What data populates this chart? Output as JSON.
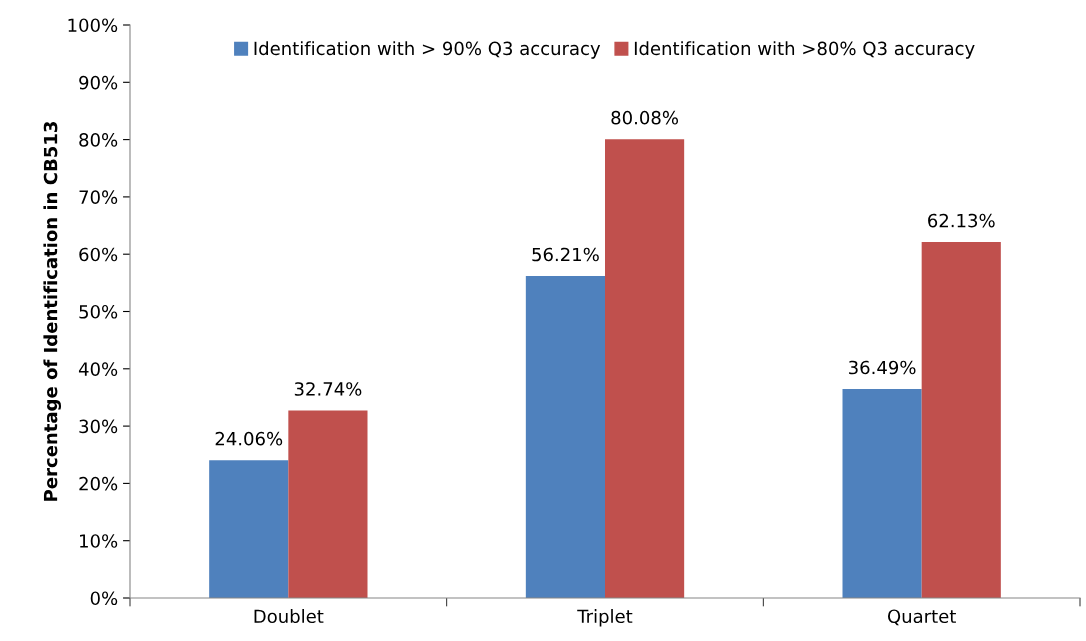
{
  "chart_data": {
    "type": "bar",
    "ylabel": "Percentage of Identification in CB513",
    "categories": [
      "Doublet",
      "Triplet",
      "Quartet"
    ],
    "series": [
      {
        "name": "Identification with > 90% Q3 accuracy",
        "color": "#4f81bd",
        "values": [
          24.06,
          56.21,
          36.49
        ],
        "value_labels": [
          "24.06%",
          "56.21%",
          "36.49%"
        ]
      },
      {
        "name": "Identification with >80% Q3 accuracy",
        "color": "#c0504d",
        "values": [
          32.74,
          80.08,
          62.13
        ],
        "value_labels": [
          "32.74%",
          "80.08%",
          "62.13%"
        ]
      }
    ],
    "ylim": [
      0,
      100
    ],
    "yticks": [
      {
        "value": 0,
        "label": "0%"
      },
      {
        "value": 10,
        "label": "10%"
      },
      {
        "value": 20,
        "label": "20%"
      },
      {
        "value": 30,
        "label": "30%"
      },
      {
        "value": 40,
        "label": "40%"
      },
      {
        "value": 50,
        "label": "50%"
      },
      {
        "value": 60,
        "label": "60%"
      },
      {
        "value": 70,
        "label": "70%"
      },
      {
        "value": 80,
        "label": "80%"
      },
      {
        "value": 90,
        "label": "90%"
      },
      {
        "value": 100,
        "label": "100%"
      }
    ],
    "grid": false,
    "legend": "top"
  }
}
